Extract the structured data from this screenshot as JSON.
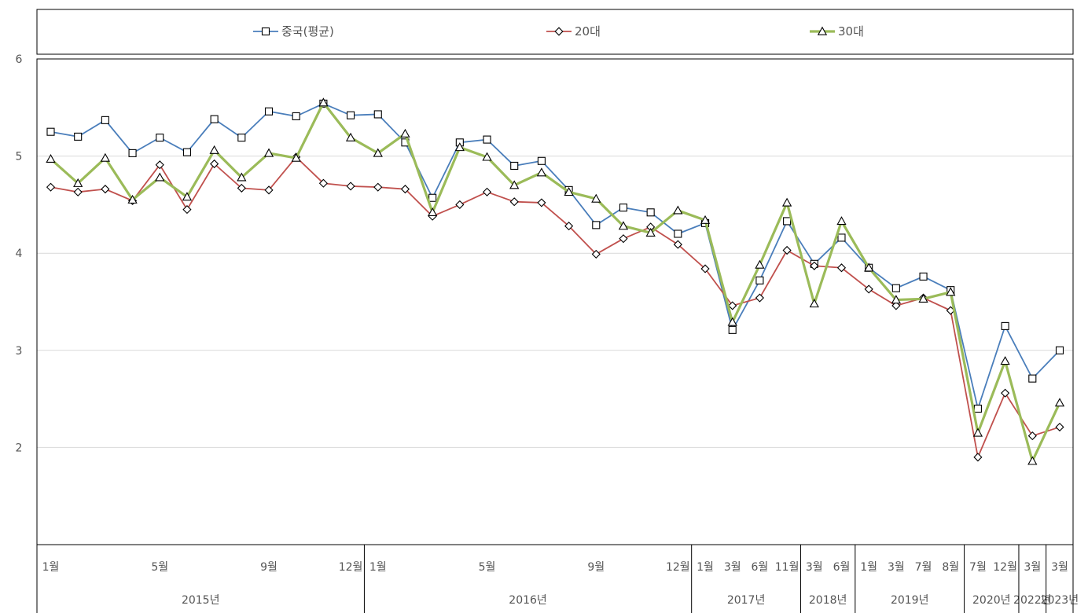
{
  "chart_data": {
    "type": "line",
    "title": "",
    "xlabel": "",
    "ylabel": "",
    "ylim": [
      1,
      6
    ],
    "yticks": [
      2,
      3,
      4,
      5,
      6
    ],
    "grid": true,
    "legend_position": "top",
    "x_labels": [
      "1월",
      "",
      "",
      "",
      "5월",
      "",
      "",
      "",
      "9월",
      "",
      "",
      "12월",
      "1월",
      "",
      "",
      "",
      "5월",
      "",
      "",
      "",
      "9월",
      "",
      "",
      "12월",
      "1월",
      "3월",
      "6월",
      "11월",
      "3월",
      "6월",
      "1월",
      "3월",
      "7월",
      "8월",
      "7월",
      "12월",
      "3월",
      "3월"
    ],
    "groups": [
      {
        "label": "2015년",
        "count": 12
      },
      {
        "label": "2016년",
        "count": 12
      },
      {
        "label": "2017년",
        "count": 4
      },
      {
        "label": "2018년",
        "count": 2
      },
      {
        "label": "2019년",
        "count": 4
      },
      {
        "label": "2020년",
        "count": 2
      },
      {
        "label": "2022년",
        "count": 1
      },
      {
        "label": "2023년",
        "count": 1
      }
    ],
    "series": [
      {
        "name": "중국(평균)",
        "color": "#4a7ebb",
        "marker": "square",
        "values": [
          5.25,
          5.2,
          5.37,
          5.03,
          5.19,
          5.04,
          5.38,
          5.19,
          5.46,
          5.41,
          5.54,
          5.42,
          5.43,
          5.14,
          4.57,
          5.14,
          5.17,
          4.9,
          4.95,
          4.65,
          4.29,
          4.47,
          4.42,
          4.2,
          4.31,
          3.21,
          3.72,
          4.33,
          3.89,
          4.16,
          3.85,
          3.64,
          3.76,
          3.62,
          2.4,
          3.25,
          2.71,
          3.0
        ]
      },
      {
        "name": "20대",
        "color": "#c0504d",
        "marker": "diamond",
        "values": [
          4.68,
          4.63,
          4.66,
          4.54,
          4.91,
          4.45,
          4.92,
          4.67,
          4.65,
          4.99,
          4.72,
          4.69,
          4.68,
          4.66,
          4.38,
          4.5,
          4.63,
          4.53,
          4.52,
          4.28,
          3.99,
          4.15,
          4.27,
          4.09,
          3.84,
          3.46,
          3.54,
          4.03,
          3.87,
          3.85,
          3.63,
          3.46,
          3.54,
          3.41,
          1.9,
          2.56,
          2.12,
          2.21
        ]
      },
      {
        "name": "30대",
        "color": "#9bbb59",
        "marker": "triangle",
        "values": [
          4.97,
          4.72,
          4.98,
          4.55,
          4.78,
          4.58,
          5.06,
          4.78,
          5.03,
          4.98,
          5.55,
          5.19,
          5.03,
          5.23,
          4.42,
          5.09,
          4.99,
          4.7,
          4.83,
          4.63,
          4.56,
          4.28,
          4.21,
          4.44,
          4.34,
          3.29,
          3.88,
          4.52,
          3.48,
          4.33,
          3.85,
          3.52,
          3.53,
          3.6,
          2.15,
          2.89,
          1.86,
          2.46
        ]
      }
    ]
  }
}
